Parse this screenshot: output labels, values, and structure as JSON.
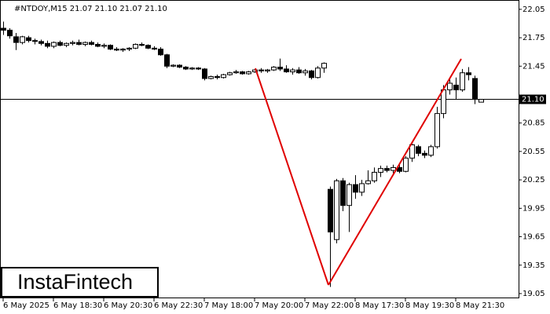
{
  "chart_data": {
    "type": "candlestick",
    "title": "#NTDOY,M15  21.07 21.10 21.07 21.10",
    "brand": "InstaFintech",
    "categories": [
      "6 May 2025",
      null,
      null,
      null,
      null,
      null,
      null,
      null,
      "6 May 18:30",
      null,
      null,
      null,
      null,
      null,
      null,
      null,
      "6 May 20:30",
      null,
      null,
      null,
      null,
      null,
      null,
      null,
      "6 May 22:30",
      null,
      null,
      null,
      null,
      null,
      null,
      null,
      "7 May 18:00",
      null,
      null,
      null,
      null,
      null,
      null,
      null,
      "7 May 20:00",
      null,
      null,
      null,
      null,
      null,
      null,
      null,
      "7 May 22:00",
      null,
      null,
      null,
      null,
      null,
      null,
      null,
      "8 May 17:30",
      null,
      null,
      null,
      null,
      null,
      null,
      null,
      "8 May 19:30",
      null,
      null,
      null,
      null,
      null,
      null,
      null,
      "8 May 21:30",
      null,
      null,
      null,
      null
    ],
    "ohlc": [
      [
        21.85,
        21.92,
        21.78,
        21.83
      ],
      [
        21.83,
        21.85,
        21.74,
        21.77
      ],
      [
        21.76,
        21.8,
        21.62,
        21.7
      ],
      [
        21.7,
        21.77,
        21.68,
        21.76
      ],
      [
        21.75,
        21.77,
        21.7,
        21.72
      ],
      [
        21.72,
        21.74,
        21.68,
        21.72
      ],
      [
        21.71,
        21.73,
        21.67,
        21.69
      ],
      [
        21.69,
        21.72,
        21.64,
        21.66
      ],
      [
        21.66,
        21.71,
        21.64,
        21.7
      ],
      [
        21.7,
        21.72,
        21.66,
        21.67
      ],
      [
        21.67,
        21.7,
        21.65,
        21.69
      ],
      [
        21.69,
        21.72,
        21.67,
        21.7
      ],
      [
        21.7,
        21.73,
        21.67,
        21.68
      ],
      [
        21.68,
        21.71,
        21.66,
        21.7
      ],
      [
        21.7,
        21.72,
        21.67,
        21.68
      ],
      [
        21.68,
        21.7,
        21.65,
        21.66
      ],
      [
        21.66,
        21.69,
        21.64,
        21.67
      ],
      [
        21.67,
        21.68,
        21.62,
        21.63
      ],
      [
        21.63,
        21.65,
        21.61,
        21.62
      ],
      [
        21.62,
        21.64,
        21.6,
        21.63
      ],
      [
        21.63,
        21.65,
        21.61,
        21.64
      ],
      [
        21.64,
        21.69,
        21.63,
        21.68
      ],
      [
        21.68,
        21.7,
        21.66,
        21.67
      ],
      [
        21.67,
        21.68,
        21.63,
        21.64
      ],
      [
        21.64,
        21.66,
        21.62,
        21.63
      ],
      [
        21.63,
        21.65,
        21.56,
        21.57
      ],
      [
        21.57,
        21.58,
        21.43,
        21.45
      ],
      [
        21.45,
        21.47,
        21.44,
        21.46
      ],
      [
        21.46,
        21.47,
        21.43,
        21.44
      ],
      [
        21.44,
        21.45,
        21.41,
        21.42
      ],
      [
        21.42,
        21.44,
        21.41,
        21.43
      ],
      [
        21.43,
        21.44,
        21.41,
        21.42
      ],
      [
        21.42,
        21.43,
        21.3,
        21.32
      ],
      [
        21.32,
        21.35,
        21.31,
        21.34
      ],
      [
        21.34,
        21.36,
        21.31,
        21.33
      ],
      [
        21.33,
        21.37,
        21.32,
        21.36
      ],
      [
        21.36,
        21.39,
        21.35,
        21.38
      ],
      [
        21.38,
        21.41,
        21.37,
        21.39
      ],
      [
        21.39,
        21.4,
        21.36,
        21.37
      ],
      [
        21.37,
        21.4,
        21.36,
        21.39
      ],
      [
        21.39,
        21.42,
        21.38,
        21.41
      ],
      [
        21.41,
        21.43,
        21.38,
        21.4
      ],
      [
        21.4,
        21.42,
        21.38,
        21.41
      ],
      [
        21.41,
        21.45,
        21.4,
        21.44
      ],
      [
        21.44,
        21.53,
        21.4,
        21.42
      ],
      [
        21.42,
        21.46,
        21.38,
        21.39
      ],
      [
        21.39,
        21.43,
        21.36,
        21.41
      ],
      [
        21.41,
        21.44,
        21.37,
        21.38
      ],
      [
        21.38,
        21.42,
        21.35,
        21.4
      ],
      [
        21.4,
        21.41,
        21.31,
        21.33
      ],
      [
        21.33,
        21.45,
        21.32,
        21.43
      ],
      [
        21.43,
        21.49,
        21.38,
        21.48
      ],
      [
        20.15,
        20.18,
        19.12,
        19.7
      ],
      [
        19.62,
        20.26,
        19.58,
        20.24
      ],
      [
        20.24,
        20.27,
        19.92,
        19.98
      ],
      [
        19.98,
        20.22,
        19.7,
        20.2
      ],
      [
        20.2,
        20.3,
        20.05,
        20.12
      ],
      [
        20.12,
        20.25,
        20.08,
        20.21
      ],
      [
        20.21,
        20.35,
        20.2,
        20.24
      ],
      [
        20.24,
        20.38,
        20.22,
        20.33
      ],
      [
        20.33,
        20.4,
        20.28,
        20.37
      ],
      [
        20.37,
        20.4,
        20.33,
        20.35
      ],
      [
        20.35,
        20.41,
        20.32,
        20.38
      ],
      [
        20.38,
        20.42,
        20.32,
        20.34
      ],
      [
        20.34,
        20.5,
        20.33,
        20.48
      ],
      [
        20.48,
        20.65,
        20.44,
        20.62
      ],
      [
        20.6,
        20.62,
        20.5,
        20.53
      ],
      [
        20.53,
        20.56,
        20.48,
        20.51
      ],
      [
        20.51,
        20.62,
        20.49,
        20.6
      ],
      [
        20.6,
        21.02,
        20.58,
        20.95
      ],
      [
        20.95,
        21.25,
        20.9,
        21.2
      ],
      [
        21.2,
        21.32,
        21.15,
        21.27
      ],
      [
        21.25,
        21.33,
        21.1,
        21.2
      ],
      [
        21.2,
        21.42,
        21.18,
        21.38
      ],
      [
        21.38,
        21.44,
        21.3,
        21.36
      ],
      [
        21.32,
        21.35,
        21.05,
        21.1
      ],
      [
        21.07,
        21.1,
        21.07,
        21.1
      ]
    ],
    "current_price": {
      "value": 21.1,
      "label": "21.10"
    },
    "pattern_color": "#e00000",
    "ylim": [
      19.0,
      22.14
    ],
    "yticks": [
      22.05,
      21.75,
      21.45,
      20.85,
      20.55,
      20.25,
      19.95,
      19.65,
      19.35,
      19.05
    ]
  }
}
